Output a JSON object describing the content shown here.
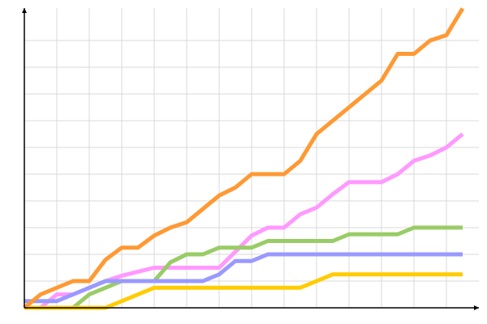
{
  "chart_data": {
    "type": "line",
    "title": "",
    "xlabel": "",
    "ylabel": "",
    "xlim": [
      0,
      28
    ],
    "ylim": [
      0,
      112
    ],
    "grid": true,
    "x_grid_step": 2,
    "y_grid_step": 10,
    "x": [
      0,
      1,
      2,
      3,
      4,
      5,
      6,
      7,
      8,
      9,
      10,
      11,
      12,
      13,
      14,
      15,
      16,
      17,
      18,
      19,
      20,
      21,
      22,
      23,
      24,
      25,
      26,
      27
    ],
    "series": [
      {
        "color": "#FF99FF",
        "values": [
          0,
          0,
          5,
          5,
          7.5,
          10,
          12,
          13.5,
          15,
          15,
          15,
          15,
          15,
          21,
          27,
          30,
          30,
          35,
          37.5,
          42.5,
          47,
          47,
          47,
          50,
          55,
          57,
          60,
          65
        ]
      },
      {
        "color": "#99CC66",
        "values": [
          0,
          0,
          0,
          0,
          5,
          7.5,
          10,
          10,
          10,
          17,
          20,
          20,
          22.5,
          22.5,
          22.5,
          25,
          25,
          25,
          25,
          25,
          27.5,
          27.5,
          27.5,
          27.5,
          30,
          30,
          30,
          30
        ]
      },
      {
        "color": "#FFCC00",
        "values": [
          0,
          0,
          0,
          0,
          0,
          0,
          2.5,
          5,
          7.5,
          7.5,
          7.5,
          7.5,
          7.5,
          7.5,
          7.5,
          7.5,
          7.5,
          7.5,
          10,
          12.5,
          12.5,
          12.5,
          12.5,
          12.5,
          12.5,
          12.5,
          12.5,
          12.5
        ]
      },
      {
        "color": "#9999FF",
        "values": [
          2.5,
          2.5,
          2.5,
          5,
          7.5,
          10,
          10,
          10,
          10,
          10,
          10,
          10,
          12.5,
          17.5,
          17.5,
          20,
          20,
          20,
          20,
          20,
          20,
          20,
          20,
          20,
          20,
          20,
          20,
          20
        ]
      },
      {
        "color": "#FF9933",
        "values": [
          0,
          5,
          7.5,
          10,
          10,
          18,
          22.5,
          22.5,
          27,
          30,
          32,
          37,
          42,
          45,
          50,
          50,
          50,
          55,
          65,
          70,
          75,
          80,
          85,
          95,
          95,
          100,
          102,
          112
        ]
      }
    ]
  }
}
